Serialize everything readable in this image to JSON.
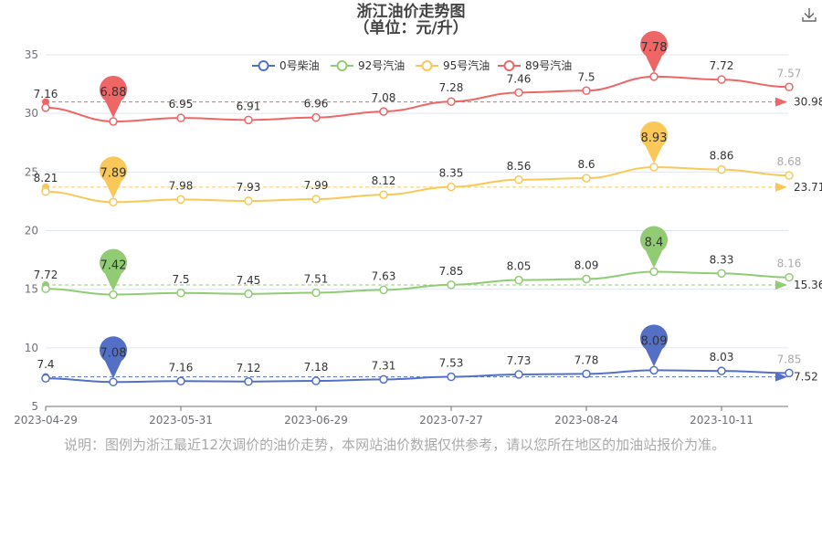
{
  "title": "浙江油价走势图",
  "subtitle": "（单位：元/升）",
  "note": "说明：图例为浙江最近12次调价的油价走势，本网站油价数据仅供参考，请以您所在地区的加油站报价为准。",
  "icons": {
    "download": "download-icon"
  },
  "chart_data": {
    "type": "line",
    "title": "浙江油价走势图",
    "subtitle": "（单位：元/升）",
    "x": [
      "2023-04-29",
      "2023-05-16",
      "2023-05-31",
      "2023-06-14",
      "2023-06-29",
      "2023-07-13",
      "2023-07-27",
      "2023-08-10",
      "2023-08-24",
      "2023-09-07",
      "2023-10-11",
      "2023-10-26"
    ],
    "x_ticks": [
      "2023-04-29",
      "2023-05-31",
      "2023-06-29",
      "2023-07-27",
      "2023-08-24",
      "2023-10-11"
    ],
    "y_ticks": [
      "5",
      "10",
      "15",
      "20",
      "25",
      "30",
      "35"
    ],
    "ylim": [
      5,
      35
    ],
    "legend_position": "top",
    "grid": true,
    "series": [
      {
        "name": "0号柴油",
        "color": "#5470c6",
        "values": [
          7.4,
          7.08,
          7.16,
          7.12,
          7.18,
          7.31,
          7.53,
          7.73,
          7.78,
          8.09,
          8.03,
          7.85
        ],
        "plot_values": [
          7.4,
          7.08,
          7.16,
          7.12,
          7.18,
          7.31,
          7.53,
          7.73,
          7.78,
          8.09,
          8.03,
          7.85
        ],
        "labels": [
          "7.4",
          "7.08",
          "7.16",
          "7.12",
          "7.18",
          "7.31",
          "7.53",
          "7.73",
          "7.78",
          "8.09",
          "8.03",
          "7.85"
        ],
        "max_label": "8.09",
        "min_label": "7.08",
        "average_label": "7.52"
      },
      {
        "name": "92号汽油",
        "color": "#91cc75",
        "values": [
          7.72,
          7.42,
          7.5,
          7.45,
          7.51,
          7.63,
          7.85,
          8.05,
          8.09,
          8.4,
          8.33,
          8.16
        ],
        "plot_values": [
          15.04,
          14.54,
          14.68,
          14.6,
          14.7,
          14.94,
          15.38,
          15.78,
          15.87,
          16.49,
          16.35,
          16.02
        ],
        "labels": [
          "7.72",
          "7.42",
          "7.5",
          "7.45",
          "7.51",
          "7.63",
          "7.85",
          "8.05",
          "8.09",
          "8.4",
          "8.33",
          "8.16"
        ],
        "max_label": "8.4",
        "min_label": "7.42",
        "average_label": "15.36"
      },
      {
        "name": "95号汽油",
        "color": "#fac858",
        "values": [
          8.21,
          7.89,
          7.98,
          7.93,
          7.99,
          8.12,
          8.35,
          8.56,
          8.6,
          8.93,
          8.86,
          8.68
        ],
        "plot_values": [
          23.33,
          22.43,
          22.66,
          22.53,
          22.69,
          23.06,
          23.73,
          24.34,
          24.47,
          25.42,
          25.21,
          24.7
        ],
        "labels": [
          "8.21",
          "7.89",
          "7.98",
          "7.93",
          "7.99",
          "8.12",
          "8.35",
          "8.56",
          "8.6",
          "8.93",
          "8.86",
          "8.68"
        ],
        "max_label": "8.93",
        "min_label": "7.89",
        "average_label": "23.71"
      },
      {
        "name": "89号汽油",
        "color": "#ee6666",
        "values": [
          7.16,
          6.88,
          6.95,
          6.91,
          6.96,
          7.08,
          7.28,
          7.46,
          7.5,
          7.78,
          7.72,
          7.57
        ],
        "plot_values": [
          30.49,
          29.31,
          29.61,
          29.44,
          29.65,
          30.16,
          31.01,
          31.78,
          31.94,
          33.14,
          32.89,
          32.25
        ],
        "labels": [
          "7.16",
          "6.88",
          "6.95",
          "6.91",
          "6.96",
          "7.08",
          "7.28",
          "7.46",
          "7.5",
          "7.78",
          "7.72",
          "7.57"
        ],
        "max_label": "7.78",
        "min_label": "6.88",
        "average_label": "30.98"
      }
    ]
  }
}
